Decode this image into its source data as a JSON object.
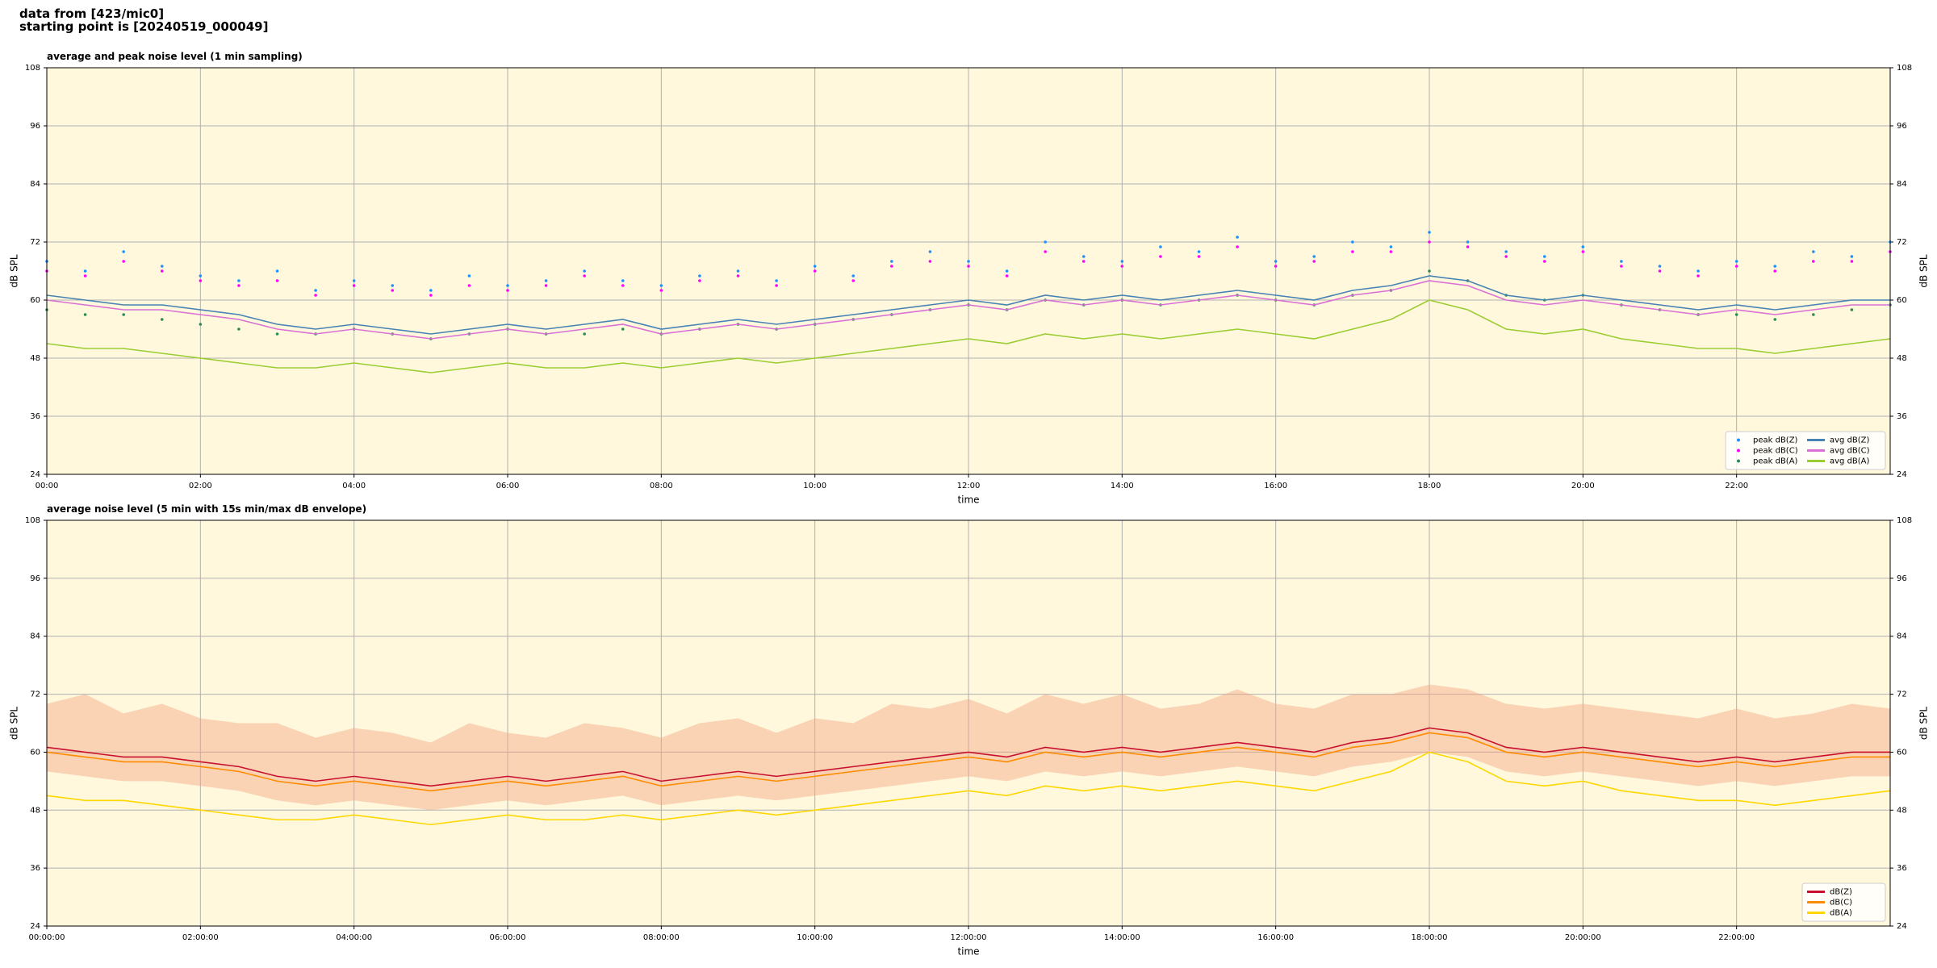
{
  "header": [
    "data from [423/mic0]",
    "starting point is [20240519_000049]"
  ],
  "chart_data": [
    {
      "type": "line",
      "title": "average and peak noise level (1 min sampling)",
      "xlabel": "time",
      "ylabel": "dB SPL",
      "background": "#fff8dc",
      "grid": true,
      "legend": "lower right",
      "legend_columns": 2,
      "xlim": [
        0,
        1440
      ],
      "ylim": [
        24,
        108
      ],
      "y2lim": [
        24,
        108
      ],
      "xticks": [
        {
          "value": 0,
          "label": "00:00"
        },
        {
          "value": 120,
          "label": "02:00"
        },
        {
          "value": 240,
          "label": "04:00"
        },
        {
          "value": 360,
          "label": "06:00"
        },
        {
          "value": 480,
          "label": "08:00"
        },
        {
          "value": 600,
          "label": "10:00"
        },
        {
          "value": 720,
          "label": "12:00"
        },
        {
          "value": 840,
          "label": "14:00"
        },
        {
          "value": 960,
          "label": "16:00"
        },
        {
          "value": 1080,
          "label": "18:00"
        },
        {
          "value": 1200,
          "label": "20:00"
        },
        {
          "value": 1320,
          "label": "22:00"
        }
      ],
      "yticks": [
        24,
        36,
        48,
        60,
        72,
        84,
        96,
        108
      ],
      "y2ticks": [
        24,
        36,
        48,
        60,
        72,
        84,
        96,
        108
      ],
      "x": [
        0,
        30,
        60,
        90,
        120,
        150,
        180,
        210,
        240,
        270,
        300,
        330,
        360,
        390,
        420,
        450,
        480,
        510,
        540,
        570,
        600,
        630,
        660,
        690,
        720,
        750,
        780,
        810,
        840,
        870,
        900,
        930,
        960,
        990,
        1020,
        1050,
        1080,
        1110,
        1140,
        1170,
        1200,
        1230,
        1260,
        1290,
        1320,
        1350,
        1380,
        1410,
        1440
      ],
      "series": [
        {
          "name": "peak dB(Z)",
          "kind": "dots",
          "color": "#1e90ff",
          "values": [
            68,
            66,
            70,
            67,
            65,
            64,
            66,
            62,
            64,
            63,
            62,
            65,
            63,
            64,
            66,
            64,
            63,
            65,
            66,
            64,
            67,
            65,
            68,
            70,
            68,
            66,
            72,
            69,
            68,
            71,
            70,
            73,
            68,
            69,
            72,
            71,
            74,
            72,
            70,
            69,
            71,
            68,
            67,
            66,
            68,
            67,
            70,
            69,
            72
          ]
        },
        {
          "name": "peak dB(C)",
          "kind": "dots",
          "color": "#ff00ff",
          "values": [
            66,
            65,
            68,
            66,
            64,
            63,
            64,
            61,
            63,
            62,
            61,
            63,
            62,
            63,
            65,
            63,
            62,
            64,
            65,
            63,
            66,
            64,
            67,
            68,
            67,
            65,
            70,
            68,
            67,
            69,
            69,
            71,
            67,
            68,
            70,
            70,
            72,
            71,
            69,
            68,
            70,
            67,
            66,
            65,
            67,
            66,
            68,
            68,
            70
          ]
        },
        {
          "name": "peak dB(A)",
          "kind": "dots",
          "color": "#2e8b57",
          "values": [
            58,
            57,
            57,
            56,
            55,
            54,
            53,
            53,
            54,
            53,
            52,
            53,
            54,
            53,
            53,
            54,
            53,
            54,
            55,
            54,
            55,
            56,
            57,
            58,
            59,
            58,
            60,
            59,
            60,
            59,
            60,
            61,
            60,
            59,
            61,
            62,
            66,
            64,
            61,
            60,
            61,
            59,
            58,
            57,
            57,
            56,
            57,
            58,
            59
          ]
        },
        {
          "name": "avg dB(Z)",
          "kind": "line",
          "color": "#4682b4",
          "values": [
            61,
            60,
            59,
            59,
            58,
            57,
            55,
            54,
            55,
            54,
            53,
            54,
            55,
            54,
            55,
            56,
            54,
            55,
            56,
            55,
            56,
            57,
            58,
            59,
            60,
            59,
            61,
            60,
            61,
            60,
            61,
            62,
            61,
            60,
            62,
            63,
            65,
            64,
            61,
            60,
            61,
            60,
            59,
            58,
            59,
            58,
            59,
            60,
            60
          ]
        },
        {
          "name": "avg dB(C)",
          "kind": "line",
          "color": "#da70d6",
          "values": [
            60,
            59,
            58,
            58,
            57,
            56,
            54,
            53,
            54,
            53,
            52,
            53,
            54,
            53,
            54,
            55,
            53,
            54,
            55,
            54,
            55,
            56,
            57,
            58,
            59,
            58,
            60,
            59,
            60,
            59,
            60,
            61,
            60,
            59,
            61,
            62,
            64,
            63,
            60,
            59,
            60,
            59,
            58,
            57,
            58,
            57,
            58,
            59,
            59
          ]
        },
        {
          "name": "avg dB(A)",
          "kind": "line",
          "color": "#9acd32",
          "values": [
            51,
            50,
            50,
            49,
            48,
            47,
            46,
            46,
            47,
            46,
            45,
            46,
            47,
            46,
            46,
            47,
            46,
            47,
            48,
            47,
            48,
            49,
            50,
            51,
            52,
            51,
            53,
            52,
            53,
            52,
            53,
            54,
            53,
            52,
            54,
            56,
            60,
            58,
            54,
            53,
            54,
            52,
            51,
            50,
            50,
            49,
            50,
            51,
            52
          ]
        }
      ]
    },
    {
      "type": "line",
      "title": "average noise level (5 min with 15s min/max dB envelope)",
      "xlabel": "time",
      "ylabel": "dB SPL",
      "background": "#fff8dc",
      "grid": true,
      "legend": "lower right",
      "legend_columns": 1,
      "xlim": [
        0,
        1440
      ],
      "ylim": [
        24,
        108
      ],
      "y2lim": [
        24,
        108
      ],
      "xticks": [
        {
          "value": 0,
          "label": "00:00:00"
        },
        {
          "value": 120,
          "label": "02:00:00"
        },
        {
          "value": 240,
          "label": "04:00:00"
        },
        {
          "value": 360,
          "label": "06:00:00"
        },
        {
          "value": 480,
          "label": "08:00:00"
        },
        {
          "value": 600,
          "label": "10:00:00"
        },
        {
          "value": 720,
          "label": "12:00:00"
        },
        {
          "value": 840,
          "label": "14:00:00"
        },
        {
          "value": 960,
          "label": "16:00:00"
        },
        {
          "value": 1080,
          "label": "18:00:00"
        },
        {
          "value": 1200,
          "label": "20:00:00"
        },
        {
          "value": 1320,
          "label": "22:00:00"
        }
      ],
      "yticks": [
        24,
        36,
        48,
        60,
        72,
        84,
        96,
        108
      ],
      "y2ticks": [
        24,
        36,
        48,
        60,
        72,
        84,
        96,
        108
      ],
      "x": [
        0,
        30,
        60,
        90,
        120,
        150,
        180,
        210,
        240,
        270,
        300,
        330,
        360,
        390,
        420,
        450,
        480,
        510,
        540,
        570,
        600,
        630,
        660,
        690,
        720,
        750,
        780,
        810,
        840,
        870,
        900,
        930,
        960,
        990,
        1020,
        1050,
        1080,
        1110,
        1140,
        1170,
        1200,
        1230,
        1260,
        1290,
        1320,
        1350,
        1380,
        1410,
        1440
      ],
      "envelope": {
        "color": "#f4a582",
        "low": [
          56,
          55,
          54,
          54,
          53,
          52,
          50,
          49,
          50,
          49,
          48,
          49,
          50,
          49,
          50,
          51,
          49,
          50,
          51,
          50,
          51,
          52,
          53,
          54,
          55,
          54,
          56,
          55,
          56,
          55,
          56,
          57,
          56,
          55,
          57,
          58,
          60,
          59,
          56,
          55,
          56,
          55,
          54,
          53,
          54,
          53,
          54,
          55,
          55
        ],
        "high": [
          70,
          72,
          68,
          70,
          67,
          66,
          66,
          63,
          65,
          64,
          62,
          66,
          64,
          63,
          66,
          65,
          63,
          66,
          67,
          64,
          67,
          66,
          70,
          69,
          71,
          68,
          72,
          70,
          72,
          69,
          70,
          73,
          70,
          69,
          72,
          72,
          74,
          73,
          70,
          69,
          70,
          69,
          68,
          67,
          69,
          67,
          68,
          70,
          69
        ]
      },
      "series": [
        {
          "name": "dB(Z)",
          "kind": "line",
          "color": "#c8102e",
          "values": [
            61,
            60,
            59,
            59,
            58,
            57,
            55,
            54,
            55,
            54,
            53,
            54,
            55,
            54,
            55,
            56,
            54,
            55,
            56,
            55,
            56,
            57,
            58,
            59,
            60,
            59,
            61,
            60,
            61,
            60,
            61,
            62,
            61,
            60,
            62,
            63,
            65,
            64,
            61,
            60,
            61,
            60,
            59,
            58,
            59,
            58,
            59,
            60,
            60
          ]
        },
        {
          "name": "dB(C)",
          "kind": "line",
          "color": "#ff8c00",
          "values": [
            60,
            59,
            58,
            58,
            57,
            56,
            54,
            53,
            54,
            53,
            52,
            53,
            54,
            53,
            54,
            55,
            53,
            54,
            55,
            54,
            55,
            56,
            57,
            58,
            59,
            58,
            60,
            59,
            60,
            59,
            60,
            61,
            60,
            59,
            61,
            62,
            64,
            63,
            60,
            59,
            60,
            59,
            58,
            57,
            58,
            57,
            58,
            59,
            59
          ]
        },
        {
          "name": "dB(A)",
          "kind": "line",
          "color": "#ffd700",
          "values": [
            51,
            50,
            50,
            49,
            48,
            47,
            46,
            46,
            47,
            46,
            45,
            46,
            47,
            46,
            46,
            47,
            46,
            47,
            48,
            47,
            48,
            49,
            50,
            51,
            52,
            51,
            53,
            52,
            53,
            52,
            53,
            54,
            53,
            52,
            54,
            56,
            60,
            58,
            54,
            53,
            54,
            52,
            51,
            50,
            50,
            49,
            50,
            51,
            52
          ]
        }
      ]
    }
  ]
}
